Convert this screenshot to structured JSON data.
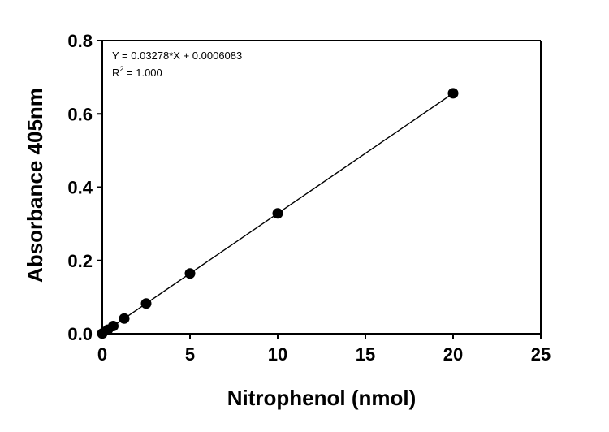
{
  "chart_data": {
    "type": "scatter",
    "xlabel": "Nitrophenol (nmol)",
    "ylabel": "Absorbance 405nm",
    "xlim": [
      0,
      25
    ],
    "ylim": [
      0,
      0.8
    ],
    "x_ticks": [
      "0",
      "5",
      "10",
      "15",
      "20",
      "25"
    ],
    "y_ticks": [
      "0.0",
      "0.2",
      "0.4",
      "0.6",
      "0.8"
    ],
    "series": [
      {
        "x": [
          0,
          0.3125,
          0.625,
          1.25,
          2.5,
          5,
          10,
          20
        ],
        "y": [
          0.0006,
          0.0109,
          0.0211,
          0.0416,
          0.0826,
          0.1645,
          0.3284,
          0.6562
        ]
      }
    ],
    "fit": {
      "slope": 0.03278,
      "intercept": 0.0006083,
      "equation_text": "Y = 0.03278*X + 0.0006083",
      "r2_prefix": "R",
      "r2_superscript": "2",
      "r2_value_text": " = 1.000"
    },
    "grid": false,
    "legend": "none",
    "colors": {
      "points": "#000000",
      "line": "#000000",
      "axes": "#000000"
    }
  }
}
